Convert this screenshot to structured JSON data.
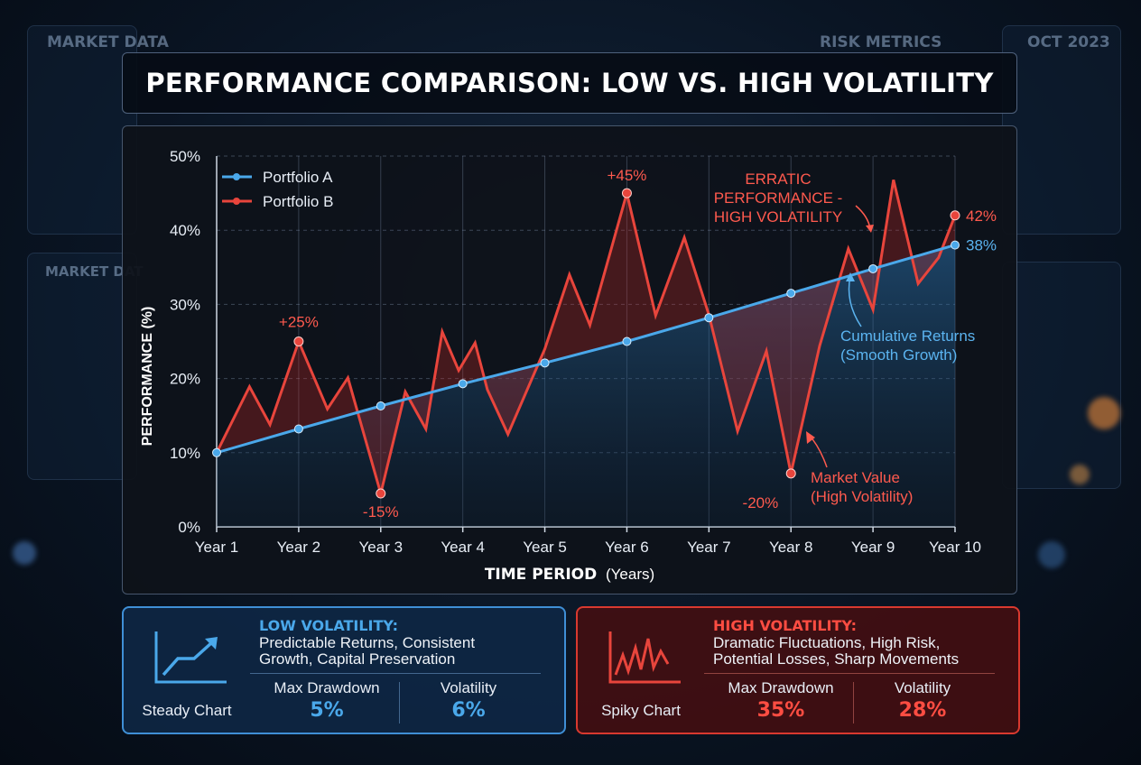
{
  "background": {
    "label_market_data": "MARKET DATA",
    "label_market_data_2": "MARKET DAT",
    "label_risk_metrics": "RISK METRICS",
    "label_date": "OCT 2023"
  },
  "title": "PERFORMANCE COMPARISON: LOW VS. HIGH VOLATILITY",
  "chart_data": {
    "type": "line",
    "title": "PERFORMANCE COMPARISON: LOW VS. HIGH VOLATILITY",
    "xlabel_bold": "TIME PERIOD",
    "xlabel_rest": "(Years)",
    "ylabel": "PERFORMANCE (%)",
    "ylim": [
      0,
      50
    ],
    "yticks": [
      0,
      10,
      20,
      30,
      40,
      50
    ],
    "ytick_labels": [
      "0%",
      "10%",
      "20%",
      "30%",
      "40%",
      "50%"
    ],
    "categories": [
      "Year 1",
      "Year 2",
      "Year 3",
      "Year 4",
      "Year 5",
      "Year 6",
      "Year 7",
      "Year 8",
      "Year 9",
      "Year 10"
    ],
    "grid": true,
    "legend_position": "top-left",
    "series": [
      {
        "name": "Portfolio A",
        "color": "#4aa8ea",
        "x": [
          1,
          2,
          3,
          4,
          5,
          6,
          7,
          8,
          9,
          10
        ],
        "y": [
          10,
          13.2,
          16.3,
          19.3,
          22.1,
          25,
          28.2,
          31.5,
          34.8,
          38
        ]
      },
      {
        "name": "Portfolio B",
        "color": "#e8453c",
        "x": [
          1,
          1.4,
          1.65,
          2,
          2.35,
          2.6,
          3,
          3.3,
          3.55,
          3.75,
          3.95,
          4.15,
          4.3,
          4.55,
          5,
          5.3,
          5.55,
          6,
          6.35,
          6.7,
          7,
          7.35,
          7.7,
          8,
          8.35,
          8.7,
          9,
          9.25,
          9.55,
          9.8,
          10
        ],
        "y": [
          10,
          18.9,
          13.8,
          25,
          15.9,
          20.1,
          4.5,
          18.2,
          13.2,
          26.3,
          21.1,
          24.8,
          18.5,
          12.5,
          24,
          34,
          27.2,
          45,
          28.5,
          39,
          28.6,
          12.9,
          23.7,
          7.2,
          24.4,
          37.5,
          29.3,
          46.8,
          32.8,
          36.3,
          42
        ]
      }
    ],
    "point_labels": [
      {
        "text": "+25%",
        "x": 2,
        "y": 25,
        "color": "red"
      },
      {
        "text": "-15%",
        "x": 3,
        "y": 4.5,
        "color": "red"
      },
      {
        "text": "+45%",
        "x": 6,
        "y": 45,
        "color": "red"
      },
      {
        "text": "-20%",
        "x": 8,
        "y": 7.2,
        "color": "red"
      },
      {
        "text": "42%",
        "x": 10,
        "y": 42,
        "color": "red"
      },
      {
        "text": "38%",
        "x": 10,
        "y": 38,
        "color": "blue"
      }
    ],
    "annotations": [
      {
        "lines": [
          "ERRATIC",
          "PERFORMANCE -",
          "HIGH VOLATILITY"
        ],
        "color": "red"
      },
      {
        "lines": [
          "Cumulative Returns",
          "(Smooth Growth)"
        ],
        "color": "blue"
      },
      {
        "lines": [
          "Market Value",
          "(High Volatility)"
        ],
        "color": "red"
      }
    ]
  },
  "cards": {
    "low": {
      "heading": "LOW VOLATILITY:",
      "desc_line1": "Predictable Returns, Consistent",
      "desc_line2": "Growth, Capital Preservation",
      "caption": "Steady Chart",
      "metric1_label": "Max Drawdown",
      "metric1_value": "5%",
      "metric2_label": "Volatility",
      "metric2_value": "6%",
      "accent": "#3f8fd6",
      "icon": "steady-chart-icon"
    },
    "high": {
      "heading": "HIGH VOLATILITY:",
      "desc_line1": "Dramatic Fluctuations, High Risk,",
      "desc_line2": "Potential Losses, Sharp Movements",
      "caption": "Spiky Chart",
      "metric1_label": "Max Drawdown",
      "metric1_value": "35%",
      "metric2_label": "Volatility",
      "metric2_value": "28%",
      "accent": "#d9392f",
      "icon": "spiky-chart-icon"
    }
  }
}
